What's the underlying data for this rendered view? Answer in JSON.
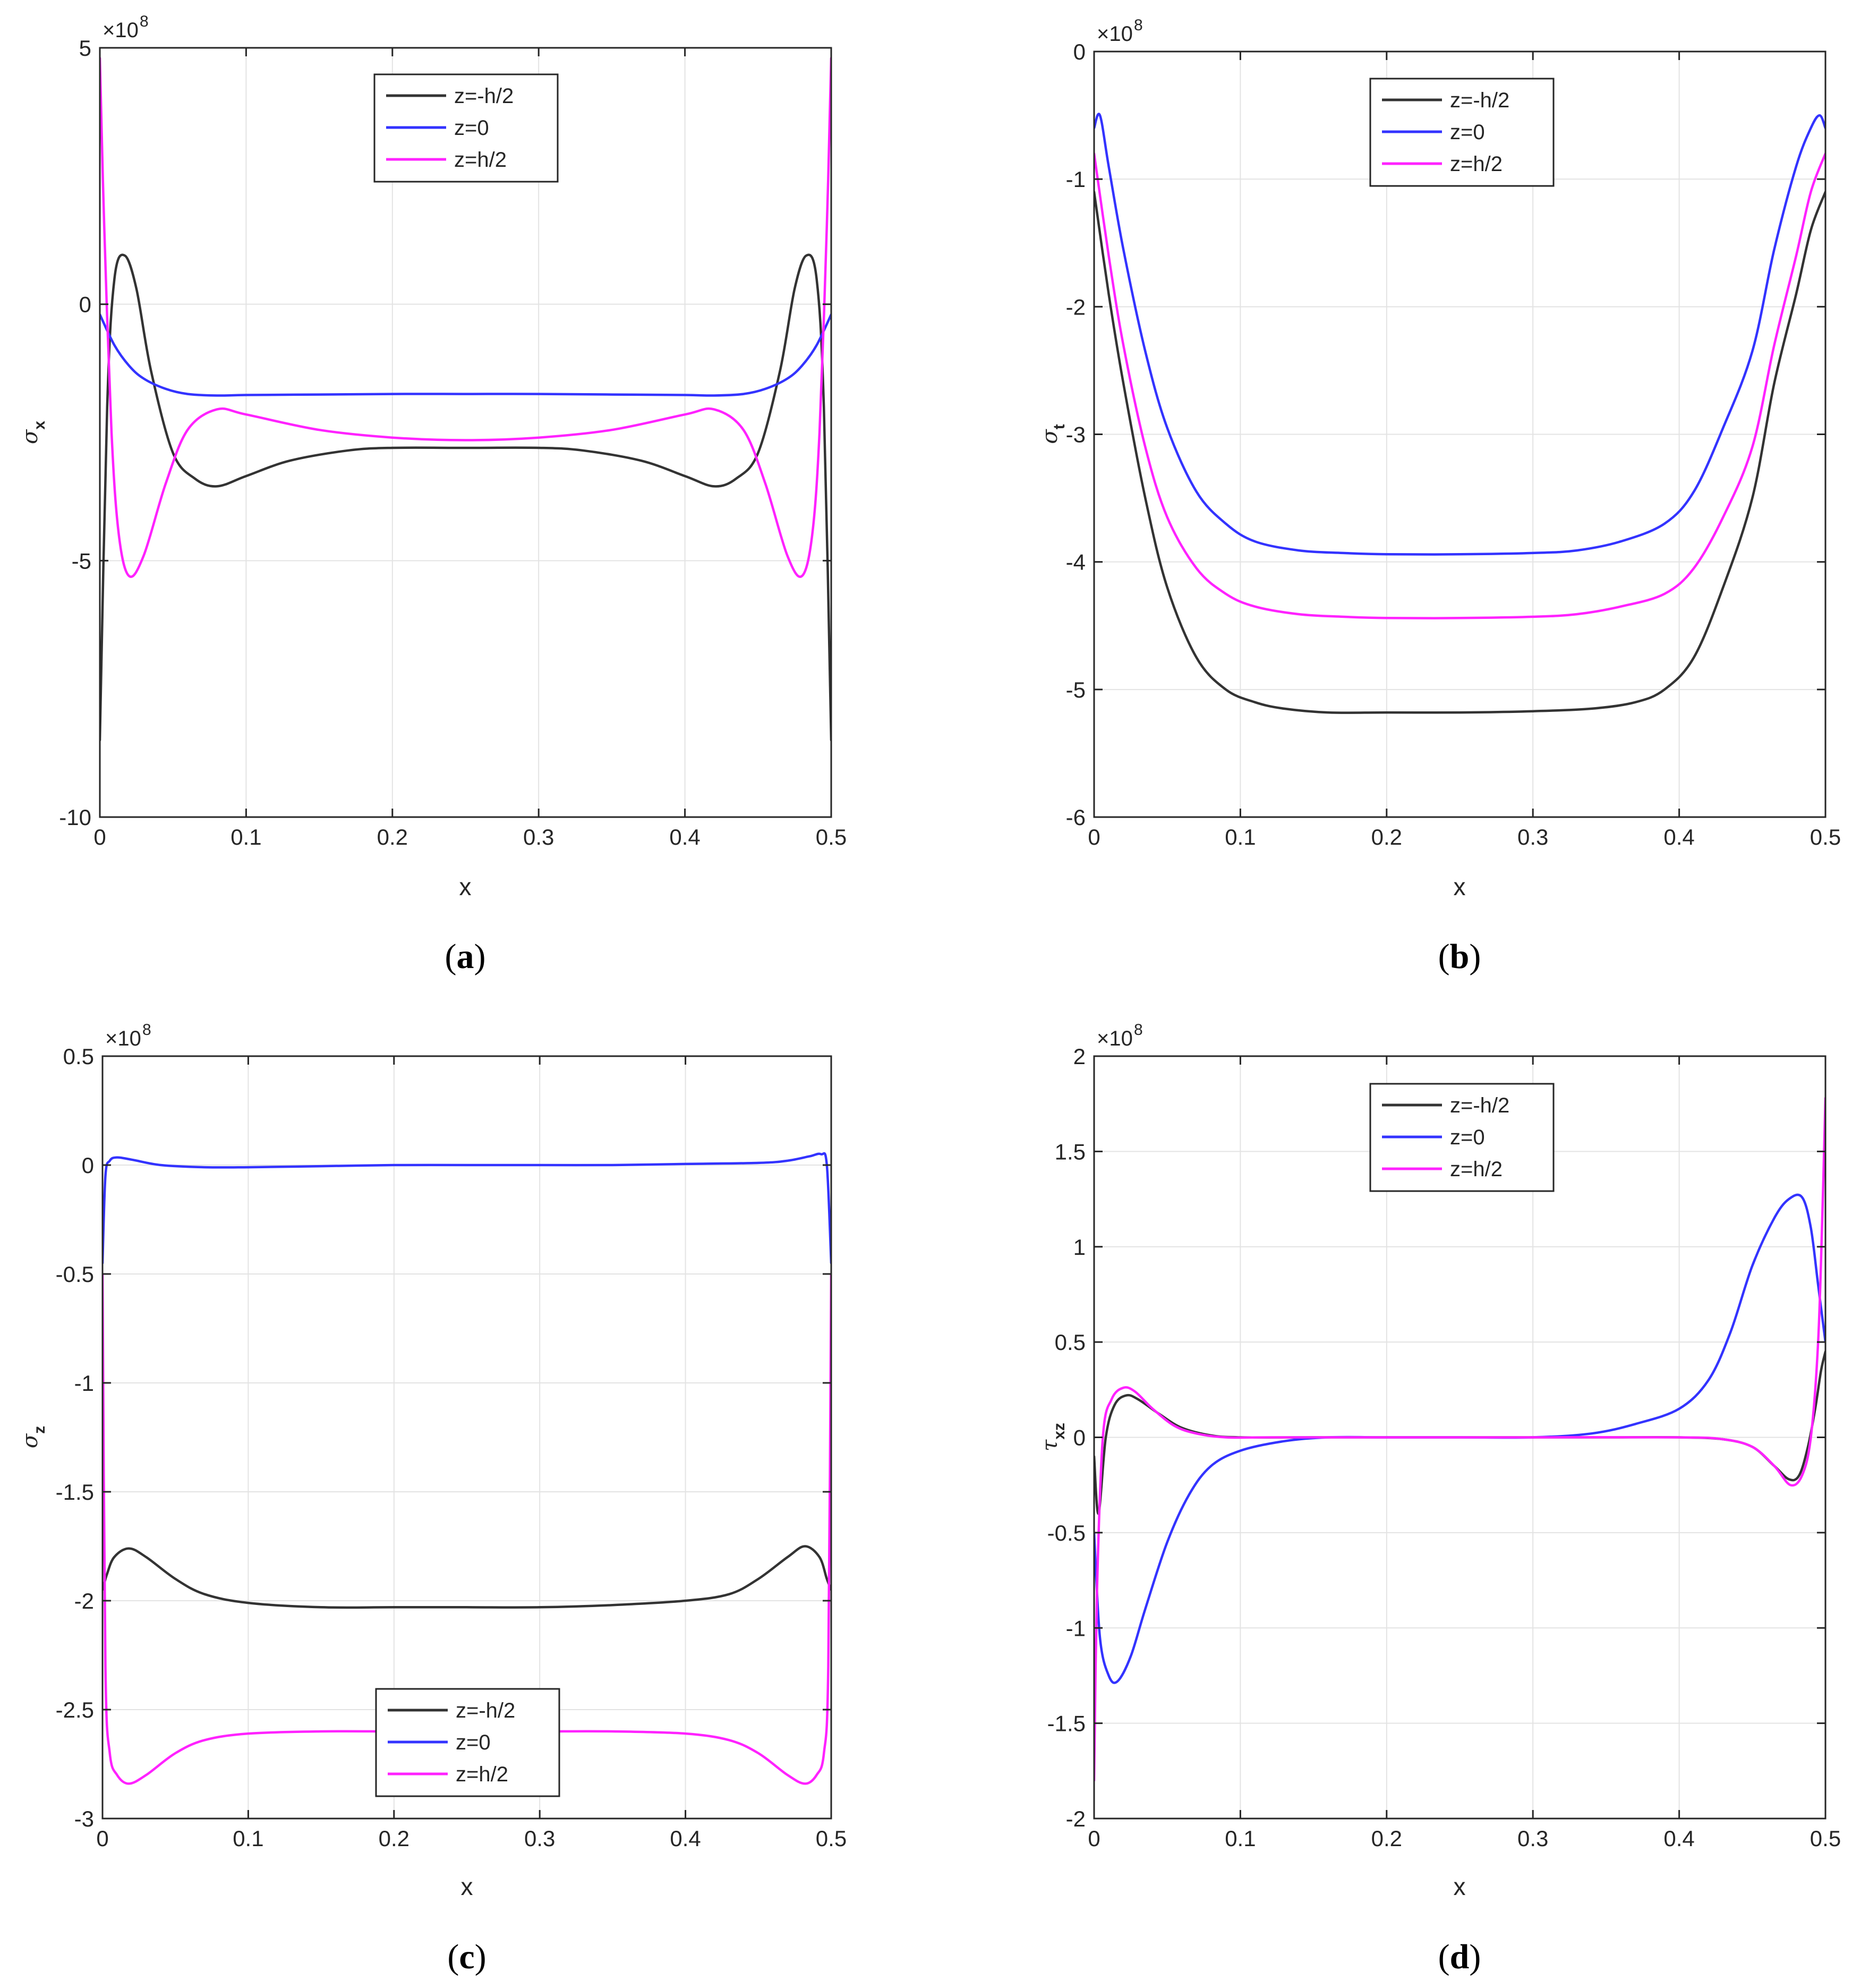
{
  "chart_data": [
    {
      "type": "line",
      "caption": "a",
      "exponent": "8",
      "xlabel": "x",
      "ylabel_symbol": "σ",
      "ylabel_sub": "x",
      "xlim": [
        0,
        0.5
      ],
      "ylim": [
        -10,
        5
      ],
      "xticks": [
        0,
        0.1,
        0.2,
        0.3,
        0.4,
        0.5
      ],
      "xtick_labels": [
        "0",
        "0.1",
        "0.2",
        "0.3",
        "0.4",
        "0.5"
      ],
      "yticks": [
        -10,
        -5,
        0,
        5
      ],
      "ytick_labels": [
        "-10",
        "-5",
        "0",
        "5"
      ],
      "grid": true,
      "legend_position": "top-center",
      "series": [
        {
          "name": "z=-h/2",
          "color": "#333333",
          "x": [
            0,
            0.005,
            0.01,
            0.017,
            0.025,
            0.035,
            0.05,
            0.065,
            0.08,
            0.1,
            0.13,
            0.17,
            0.2,
            0.25,
            0.3,
            0.33,
            0.37,
            0.4,
            0.42,
            0.435,
            0.45,
            0.465,
            0.475,
            0.483,
            0.49,
            0.495,
            0.5
          ],
          "y": [
            -8.5,
            -2.0,
            0.5,
            0.95,
            0.3,
            -1.3,
            -2.9,
            -3.4,
            -3.55,
            -3.35,
            -3.05,
            -2.85,
            -2.8,
            -2.8,
            -2.8,
            -2.85,
            -3.05,
            -3.35,
            -3.55,
            -3.4,
            -2.9,
            -1.3,
            0.3,
            0.95,
            0.5,
            -2.0,
            -8.5
          ]
        },
        {
          "name": "z=0",
          "color": "#3333ff",
          "x": [
            0,
            0.01,
            0.02,
            0.03,
            0.045,
            0.06,
            0.08,
            0.1,
            0.15,
            0.2,
            0.25,
            0.3,
            0.35,
            0.4,
            0.42,
            0.44,
            0.455,
            0.47,
            0.48,
            0.49,
            0.5
          ],
          "y": [
            -0.2,
            -0.8,
            -1.2,
            -1.45,
            -1.65,
            -1.75,
            -1.78,
            -1.77,
            -1.76,
            -1.75,
            -1.75,
            -1.75,
            -1.76,
            -1.77,
            -1.78,
            -1.75,
            -1.65,
            -1.45,
            -1.2,
            -0.8,
            -0.2
          ]
        },
        {
          "name": "z=h/2",
          "color": "#ff22ff",
          "x": [
            0,
            0.003,
            0.008,
            0.013,
            0.02,
            0.03,
            0.045,
            0.06,
            0.08,
            0.1,
            0.15,
            0.2,
            0.25,
            0.3,
            0.35,
            0.4,
            0.42,
            0.44,
            0.455,
            0.47,
            0.48,
            0.487,
            0.492,
            0.497,
            0.5
          ],
          "y": [
            4.8,
            1.5,
            -2.5,
            -4.5,
            -5.3,
            -4.9,
            -3.5,
            -2.45,
            -2.05,
            -2.15,
            -2.45,
            -2.6,
            -2.65,
            -2.6,
            -2.45,
            -2.15,
            -2.05,
            -2.45,
            -3.5,
            -4.9,
            -5.3,
            -4.5,
            -2.5,
            1.5,
            4.8
          ]
        }
      ]
    },
    {
      "type": "line",
      "caption": "b",
      "exponent": "8",
      "xlabel": "x",
      "ylabel_symbol": "σ",
      "ylabel_sub": "t",
      "xlim": [
        0,
        0.5
      ],
      "ylim": [
        -6,
        0
      ],
      "xticks": [
        0,
        0.1,
        0.2,
        0.3,
        0.4,
        0.5
      ],
      "xtick_labels": [
        "0",
        "0.1",
        "0.2",
        "0.3",
        "0.4",
        "0.5"
      ],
      "yticks": [
        -6,
        -5,
        -4,
        -3,
        -2,
        -1,
        0
      ],
      "ytick_labels": [
        "-6",
        "-5",
        "-4",
        "-3",
        "-2",
        "-1",
        "0"
      ],
      "grid": true,
      "legend_position": "top-center",
      "series": [
        {
          "name": "z=-h/2",
          "color": "#333333",
          "x": [
            0,
            0.01,
            0.02,
            0.035,
            0.05,
            0.07,
            0.09,
            0.11,
            0.13,
            0.16,
            0.2,
            0.25,
            0.3,
            0.34,
            0.37,
            0.39,
            0.41,
            0.43,
            0.45,
            0.465,
            0.48,
            0.49,
            0.5
          ],
          "y": [
            -1.1,
            -1.9,
            -2.6,
            -3.5,
            -4.2,
            -4.75,
            -5.0,
            -5.1,
            -5.15,
            -5.18,
            -5.18,
            -5.18,
            -5.17,
            -5.15,
            -5.1,
            -5.0,
            -4.75,
            -4.2,
            -3.5,
            -2.6,
            -1.9,
            -1.4,
            -1.1
          ]
        },
        {
          "name": "z=0",
          "color": "#3333ff",
          "x": [
            0,
            0.004,
            0.01,
            0.02,
            0.035,
            0.05,
            0.07,
            0.09,
            0.11,
            0.14,
            0.17,
            0.2,
            0.25,
            0.3,
            0.33,
            0.36,
            0.39,
            0.41,
            0.43,
            0.45,
            0.465,
            0.48,
            0.49,
            0.496,
            0.5
          ],
          "y": [
            -0.6,
            -0.5,
            -0.9,
            -1.55,
            -2.35,
            -2.95,
            -3.45,
            -3.7,
            -3.84,
            -3.91,
            -3.93,
            -3.94,
            -3.94,
            -3.93,
            -3.91,
            -3.84,
            -3.7,
            -3.45,
            -2.95,
            -2.35,
            -1.55,
            -0.9,
            -0.6,
            -0.5,
            -0.6
          ]
        },
        {
          "name": "z=h/2",
          "color": "#ff22ff",
          "x": [
            0,
            0.01,
            0.02,
            0.035,
            0.05,
            0.07,
            0.09,
            0.11,
            0.14,
            0.17,
            0.2,
            0.25,
            0.3,
            0.33,
            0.36,
            0.39,
            0.41,
            0.43,
            0.45,
            0.465,
            0.48,
            0.49,
            0.5
          ],
          "y": [
            -0.8,
            -1.6,
            -2.3,
            -3.1,
            -3.65,
            -4.05,
            -4.25,
            -4.35,
            -4.41,
            -4.43,
            -4.44,
            -4.44,
            -4.43,
            -4.41,
            -4.35,
            -4.25,
            -4.05,
            -3.65,
            -3.1,
            -2.3,
            -1.6,
            -1.1,
            -0.8
          ]
        }
      ]
    },
    {
      "type": "line",
      "caption": "c",
      "exponent": "8",
      "xlabel": "x",
      "ylabel_symbol": "σ",
      "ylabel_sub": "z",
      "xlim": [
        0,
        0.5
      ],
      "ylim": [
        -3,
        0.5
      ],
      "xticks": [
        0,
        0.1,
        0.2,
        0.3,
        0.4,
        0.5
      ],
      "xtick_labels": [
        "0",
        "0.1",
        "0.2",
        "0.3",
        "0.4",
        "0.5"
      ],
      "yticks": [
        -3,
        -2.5,
        -2,
        -1.5,
        -1,
        -0.5,
        0,
        0.5
      ],
      "ytick_labels": [
        "-3",
        "-2.5",
        "-2",
        "-1.5",
        "-1",
        "-0.5",
        "0",
        "0.5"
      ],
      "grid": true,
      "legend_position": "bottom-center",
      "series": [
        {
          "name": "z=-h/2",
          "color": "#333333",
          "x": [
            0,
            0.003,
            0.008,
            0.018,
            0.03,
            0.05,
            0.07,
            0.1,
            0.15,
            0.2,
            0.25,
            0.3,
            0.35,
            0.4,
            0.43,
            0.45,
            0.47,
            0.482,
            0.492,
            0.497,
            0.5
          ],
          "y": [
            -1.95,
            -1.88,
            -1.8,
            -1.76,
            -1.8,
            -1.9,
            -1.97,
            -2.01,
            -2.03,
            -2.03,
            -2.03,
            -2.03,
            -2.02,
            -2.0,
            -1.97,
            -1.9,
            -1.8,
            -1.75,
            -1.8,
            -1.9,
            -1.95
          ]
        },
        {
          "name": "z=0",
          "color": "#3333ff",
          "x": [
            0,
            0.002,
            0.005,
            0.01,
            0.02,
            0.04,
            0.07,
            0.1,
            0.15,
            0.2,
            0.25,
            0.3,
            0.35,
            0.4,
            0.45,
            0.47,
            0.485,
            0.493,
            0.497,
            0.5
          ],
          "y": [
            -0.45,
            -0.05,
            0.02,
            0.035,
            0.025,
            0.0,
            -0.01,
            -0.01,
            -0.005,
            0.0,
            0.0,
            0.0,
            0.0,
            0.005,
            0.01,
            0.02,
            0.04,
            0.05,
            0.0,
            -0.45
          ]
        },
        {
          "name": "z=h/2",
          "color": "#ff22ff",
          "x": [
            0,
            0.002,
            0.005,
            0.01,
            0.018,
            0.03,
            0.05,
            0.07,
            0.1,
            0.15,
            0.2,
            0.25,
            0.3,
            0.35,
            0.4,
            0.43,
            0.45,
            0.47,
            0.482,
            0.49,
            0.495,
            0.498,
            0.5
          ],
          "y": [
            -0.5,
            -2.3,
            -2.7,
            -2.8,
            -2.84,
            -2.8,
            -2.7,
            -2.64,
            -2.61,
            -2.6,
            -2.6,
            -2.6,
            -2.6,
            -2.6,
            -2.61,
            -2.64,
            -2.7,
            -2.8,
            -2.84,
            -2.8,
            -2.7,
            -2.3,
            -0.5
          ]
        }
      ]
    },
    {
      "type": "line",
      "caption": "d",
      "exponent": "8",
      "xlabel": "x",
      "ylabel_symbol": "τ",
      "ylabel_sub": "xz",
      "xlim": [
        0,
        0.5
      ],
      "ylim": [
        -2,
        2
      ],
      "xticks": [
        0,
        0.1,
        0.2,
        0.3,
        0.4,
        0.5
      ],
      "xtick_labels": [
        "0",
        "0.1",
        "0.2",
        "0.3",
        "0.4",
        "0.5"
      ],
      "yticks": [
        -2,
        -1.5,
        -1,
        -0.5,
        0,
        0.5,
        1,
        1.5,
        2
      ],
      "ytick_labels": [
        "-2",
        "-1.5",
        "-1",
        "-0.5",
        "0",
        "0.5",
        "1",
        "1.5",
        "2"
      ],
      "grid": true,
      "legend_position": "top-center",
      "series": [
        {
          "name": "z=-h/2",
          "color": "#333333",
          "x": [
            0,
            0.003,
            0.008,
            0.014,
            0.022,
            0.03,
            0.045,
            0.06,
            0.08,
            0.1,
            0.15,
            0.2,
            0.25,
            0.3,
            0.35,
            0.4,
            0.43,
            0.45,
            0.465,
            0.475,
            0.482,
            0.488,
            0.493,
            0.497,
            0.5
          ],
          "y": [
            -0.1,
            -0.4,
            0.0,
            0.17,
            0.22,
            0.2,
            0.12,
            0.05,
            0.01,
            0.0,
            0.0,
            0.0,
            0.0,
            0.0,
            0.0,
            0.0,
            -0.01,
            -0.05,
            -0.15,
            -0.22,
            -0.2,
            -0.05,
            0.15,
            0.35,
            0.45
          ]
        },
        {
          "name": "z=0",
          "color": "#3333ff",
          "x": [
            0,
            0.004,
            0.01,
            0.016,
            0.025,
            0.035,
            0.05,
            0.065,
            0.08,
            0.1,
            0.13,
            0.16,
            0.2,
            0.25,
            0.3,
            0.34,
            0.37,
            0.4,
            0.42,
            0.435,
            0.45,
            0.465,
            0.475,
            0.484,
            0.49,
            0.495,
            0.5
          ],
          "y": [
            -0.5,
            -1.05,
            -1.25,
            -1.28,
            -1.15,
            -0.9,
            -0.55,
            -0.3,
            -0.15,
            -0.07,
            -0.02,
            0.0,
            0.0,
            0.0,
            0.0,
            0.02,
            0.07,
            0.15,
            0.3,
            0.55,
            0.9,
            1.15,
            1.25,
            1.26,
            1.1,
            0.8,
            0.5
          ]
        },
        {
          "name": "z=h/2",
          "color": "#ff22ff",
          "x": [
            0,
            0.002,
            0.006,
            0.012,
            0.02,
            0.028,
            0.04,
            0.055,
            0.07,
            0.09,
            0.12,
            0.2,
            0.25,
            0.3,
            0.4,
            0.43,
            0.45,
            0.465,
            0.476,
            0.484,
            0.49,
            0.495,
            0.498,
            0.5
          ],
          "y": [
            -1.8,
            -0.8,
            0.0,
            0.2,
            0.26,
            0.24,
            0.15,
            0.06,
            0.02,
            0.0,
            0.0,
            0.0,
            0.0,
            0.0,
            0.0,
            -0.01,
            -0.05,
            -0.15,
            -0.25,
            -0.2,
            0.0,
            0.5,
            1.2,
            1.78
          ]
        }
      ]
    }
  ]
}
